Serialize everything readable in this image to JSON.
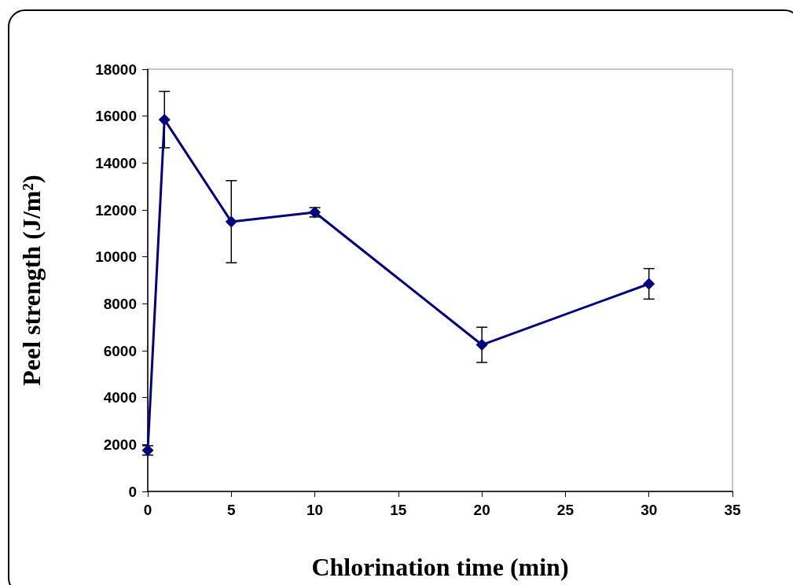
{
  "chart_data": {
    "type": "line",
    "xlabel": "Chlorination time (min)",
    "ylabel": "Peel strength (J/m²)",
    "x": [
      0,
      1,
      5,
      10,
      20,
      30
    ],
    "series": [
      {
        "color": "#000080",
        "values": [
          1750,
          15850,
          11500,
          11900,
          6250,
          8850
        ],
        "errors": [
          200,
          1200,
          1750,
          200,
          750,
          650
        ]
      }
    ],
    "xlim": [
      0,
      35
    ],
    "xticks": [
      0,
      5,
      10,
      15,
      20,
      25,
      30,
      35
    ],
    "ylim": [
      0,
      18000
    ],
    "yticks": [
      0,
      2000,
      4000,
      6000,
      8000,
      10000,
      12000,
      14000,
      16000,
      18000
    ],
    "grid": false,
    "marker": "diamond",
    "line_style": "solid"
  }
}
